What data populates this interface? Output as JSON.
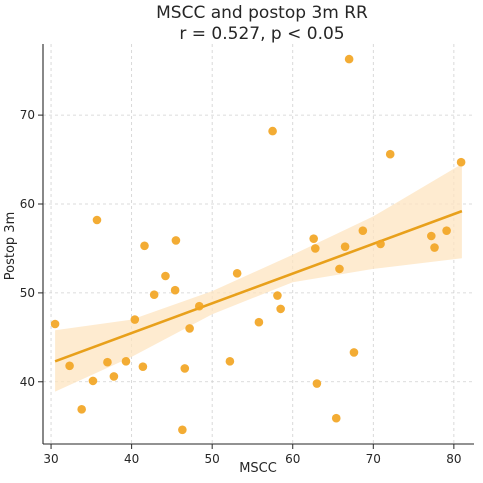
{
  "chart_data": {
    "type": "scatter",
    "title": "MSCC and postop 3m RR",
    "subtitle": "r = 0.527, p < 0.05",
    "xlabel": "MSCC",
    "ylabel": "Postop 3m",
    "xlim": [
      29,
      82.5
    ],
    "ylim": [
      33,
      78
    ],
    "xticks": [
      30,
      40,
      50,
      60,
      70,
      80
    ],
    "yticks": [
      40,
      50,
      60,
      70
    ],
    "grid": true,
    "colors": {
      "points": "#f2a523",
      "line": "#e8a01b",
      "band": "#fde4c0",
      "axis": "#262626",
      "grid": "#d0d0d0"
    },
    "series": [
      {
        "points": [
          [
            30.5,
            46.5
          ],
          [
            32.3,
            41.8
          ],
          [
            33.8,
            36.9
          ],
          [
            35.2,
            40.1
          ],
          [
            35.7,
            58.2
          ],
          [
            37.0,
            42.2
          ],
          [
            37.8,
            40.6
          ],
          [
            39.3,
            42.3
          ],
          [
            40.4,
            47.0
          ],
          [
            41.4,
            41.7
          ],
          [
            41.6,
            55.3
          ],
          [
            42.8,
            49.8
          ],
          [
            44.2,
            51.9
          ],
          [
            45.4,
            50.3
          ],
          [
            45.5,
            55.9
          ],
          [
            46.3,
            34.6
          ],
          [
            46.6,
            41.5
          ],
          [
            47.2,
            46.0
          ],
          [
            48.4,
            48.5
          ],
          [
            52.2,
            42.3
          ],
          [
            53.1,
            52.2
          ],
          [
            55.8,
            46.7
          ],
          [
            57.5,
            68.2
          ],
          [
            58.1,
            49.7
          ],
          [
            58.5,
            48.2
          ],
          [
            62.6,
            56.1
          ],
          [
            62.8,
            55.0
          ],
          [
            63.0,
            39.8
          ],
          [
            65.4,
            35.9
          ],
          [
            65.8,
            52.7
          ],
          [
            66.5,
            55.2
          ],
          [
            67.0,
            76.3
          ],
          [
            67.6,
            43.3
          ],
          [
            68.7,
            57.0
          ],
          [
            70.9,
            55.5
          ],
          [
            72.1,
            65.6
          ],
          [
            77.2,
            56.4
          ],
          [
            77.6,
            55.1
          ],
          [
            79.1,
            57.0
          ],
          [
            80.9,
            64.7
          ]
        ]
      }
    ],
    "regression": {
      "x": [
        30.5,
        81.0
      ],
      "y": [
        42.3,
        59.2
      ],
      "band_x": [
        30.5,
        40,
        50,
        60,
        70,
        81.0
      ],
      "band_lower": [
        38.9,
        42.8,
        47.6,
        51.2,
        52.7,
        53.9
      ],
      "band_upper": [
        45.8,
        47.0,
        50.2,
        54.3,
        58.6,
        64.5
      ]
    }
  }
}
